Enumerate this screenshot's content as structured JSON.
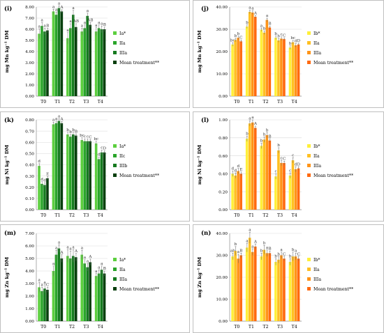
{
  "figure": {
    "panels": [
      {
        "tag": "(i)",
        "ylabel": "mg Mn kg⁻¹ DM",
        "legend": [
          "Ia*",
          "IIa",
          "IIIa",
          "Mean treatment**"
        ]
      },
      {
        "tag": "(j)",
        "ylabel": "mg Mn kg⁻¹ DM",
        "legend": [
          "Ib*",
          "IIa",
          "IIIa",
          "Mean treatment**"
        ]
      },
      {
        "tag": "(k)",
        "ylabel": "mg Ni kg⁻¹ DM",
        "legend": [
          "Ia*",
          "IIc",
          "IIIb",
          "Mean treatment**"
        ]
      },
      {
        "tag": "(l)",
        "ylabel": "mg Ni kg⁻¹ DM",
        "legend": [
          "Ib*",
          "IIa",
          "IIIa",
          "Mean treatment**"
        ]
      },
      {
        "tag": "(m)",
        "ylabel": "mg Zn kg⁻¹ DM",
        "legend": [
          "Ia*",
          "IIa",
          "IIIa",
          "Mean treatment**"
        ]
      },
      {
        "tag": "(n)",
        "ylabel": "mg Zn kg⁻¹ DM",
        "legend": [
          "Ib*",
          "IIa",
          "IIIa",
          "Mean treatment**"
        ]
      }
    ]
  },
  "chart_data": [
    {
      "type": "bar",
      "panel": "(i)",
      "palette": "green",
      "colors": [
        "#5ccf3e",
        "#2aa52a",
        "#157a1f",
        "#083f0e"
      ],
      "categories": [
        "T0",
        "T1",
        "T2",
        "T3",
        "T4"
      ],
      "ylabel": "mg Mn kg⁻¹ DM",
      "ylim": [
        0,
        8
      ],
      "yticks": [
        "0.00",
        "1.00",
        "2.00",
        "3.00",
        "4.00",
        "5.00",
        "6.00",
        "7.00",
        "8.00"
      ],
      "series": [
        {
          "name": "Ia*",
          "values": [
            5.6,
            7.6,
            5.2,
            5.8,
            5.8
          ],
          "errors": [
            0.45,
            0.2,
            0.5,
            0.3,
            0.35
          ],
          "labels": [
            "a",
            "a",
            "a",
            "a",
            "a"
          ]
        },
        {
          "name": "IIa",
          "values": [
            6.3,
            7.3,
            6.1,
            6.1,
            6.1
          ],
          "errors": [
            0.3,
            0.25,
            0.4,
            0.3,
            0.3
          ],
          "labels": [
            "a",
            "a",
            "a",
            "a",
            "a"
          ]
        },
        {
          "name": "IIIa",
          "values": [
            5.8,
            7.9,
            7.3,
            7.2,
            6.0
          ],
          "errors": [
            0.3,
            0.2,
            0.4,
            0.25,
            0.3
          ],
          "labels": [
            "a",
            "a",
            "a",
            "a",
            "a"
          ]
        },
        {
          "name": "Mean treatment**",
          "values": [
            5.9,
            7.6,
            6.2,
            6.4,
            6.0
          ],
          "errors": [
            0.2,
            0.15,
            0.3,
            0.2,
            0.2
          ],
          "labels": [
            "B",
            "A",
            "AB",
            "AB",
            "B"
          ]
        }
      ]
    },
    {
      "type": "bar",
      "panel": "(j)",
      "palette": "orange",
      "colors": [
        "#ffef3a",
        "#ffc022",
        "#ff9418",
        "#ff6a10"
      ],
      "categories": [
        "T0",
        "T1",
        "T2",
        "T3",
        "T4"
      ],
      "ylabel": "mg Mn kg⁻¹ DM",
      "ylim": [
        0,
        40
      ],
      "yticks": [
        "0.00",
        "10.00",
        "20.00",
        "30.00",
        "40.00"
      ],
      "series": [
        {
          "name": "Ib*",
          "values": [
            23.2,
            31.2,
            29.8,
            26.2,
            21.8
          ],
          "errors": [
            0.8,
            0.8,
            0.8,
            0.8,
            0.8
          ],
          "labels": [
            "bc",
            "b",
            "a",
            "b",
            "b"
          ]
        },
        {
          "name": "IIa",
          "values": [
            25.2,
            37.8,
            28.5,
            25.0,
            24.2
          ],
          "errors": [
            0.8,
            0.8,
            0.8,
            0.8,
            0.8
          ],
          "labels": [
            "b",
            "a",
            "b",
            "b",
            "bc"
          ]
        },
        {
          "name": "IIIa",
          "values": [
            26.2,
            37.5,
            34.2,
            25.8,
            22.8
          ],
          "errors": [
            0.8,
            0.8,
            0.8,
            0.8,
            0.8
          ],
          "labels": [
            "b",
            "a",
            "a",
            "c",
            "d"
          ]
        },
        {
          "name": "Mean treatment**",
          "values": [
            24.6,
            35.6,
            30.8,
            25.6,
            23.2
          ],
          "errors": [
            0.6,
            0.6,
            0.6,
            0.6,
            0.6
          ],
          "labels": [
            "C",
            "A",
            "B",
            "C",
            "D"
          ]
        }
      ]
    },
    {
      "type": "bar",
      "panel": "(k)",
      "palette": "green",
      "colors": [
        "#5ccf3e",
        "#2aa52a",
        "#157a1f",
        "#083f0e"
      ],
      "categories": [
        "T0",
        "T1",
        "T2",
        "T3",
        "T4"
      ],
      "ylabel": "mg Ni kg⁻¹ DM",
      "ylim": [
        0,
        0.8
      ],
      "yticks": [
        "0.00",
        "0.10",
        "0.20",
        "0.30",
        "0.40",
        "0.50",
        "0.60",
        "0.70",
        "0.80"
      ],
      "series": [
        {
          "name": "Ia*",
          "values": [
            0.39,
            0.76,
            0.67,
            0.62,
            0.59
          ],
          "errors": [
            0.02,
            0.02,
            0.02,
            0.02,
            0.02
          ],
          "labels": [
            "d",
            "a",
            "b",
            "bc",
            "bc"
          ]
        },
        {
          "name": "IIc",
          "values": [
            0.23,
            0.77,
            0.65,
            0.61,
            0.45
          ],
          "errors": [
            0.02,
            0.02,
            0.02,
            0.02,
            0.02
          ],
          "labels": [
            "d",
            "a",
            "b",
            "c",
            "d"
          ]
        },
        {
          "name": "IIIb",
          "values": [
            0.22,
            0.79,
            0.67,
            0.61,
            0.51
          ],
          "errors": [
            0.02,
            0.02,
            0.02,
            0.02,
            0.02
          ],
          "labels": [
            "d",
            "a",
            "b",
            "c",
            "c"
          ]
        },
        {
          "name": "Mean treatment**",
          "values": [
            0.28,
            0.77,
            0.66,
            0.61,
            0.51
          ],
          "errors": [
            0.015,
            0.015,
            0.015,
            0.015,
            0.015
          ],
          "labels": [
            "E",
            "A",
            "B",
            "C",
            "D"
          ]
        }
      ]
    },
    {
      "type": "bar",
      "panel": "(l)",
      "palette": "orange",
      "colors": [
        "#ffef3a",
        "#ffc022",
        "#ff9418",
        "#ff6a10"
      ],
      "categories": [
        "T0",
        "T1",
        "T2",
        "T3",
        "T4"
      ],
      "ylabel": "mg Ni kg⁻¹ DM",
      "ylim": [
        0,
        1
      ],
      "yticks": [
        "0.00",
        "0.20",
        "0.40",
        "0.60",
        "0.80",
        "1.00"
      ],
      "series": [
        {
          "name": "Ib*",
          "values": [
            0.4,
            0.79,
            0.71,
            0.37,
            0.38
          ],
          "errors": [
            0.03,
            0.03,
            0.03,
            0.03,
            0.03
          ],
          "labels": [
            "d",
            "b",
            "b",
            "c",
            "c"
          ]
        },
        {
          "name": "IIa",
          "values": [
            0.38,
            0.96,
            0.78,
            0.66,
            0.55
          ],
          "errors": [
            0.03,
            0.03,
            0.03,
            0.03,
            0.03
          ],
          "labels": [
            "d",
            "a",
            "b",
            "b",
            "c"
          ]
        },
        {
          "name": "IIIa",
          "values": [
            0.43,
            0.97,
            0.83,
            0.52,
            0.45
          ],
          "errors": [
            0.03,
            0.03,
            0.03,
            0.03,
            0.03
          ],
          "labels": [
            "d",
            "a",
            "b",
            "c",
            "d"
          ]
        },
        {
          "name": "Mean treatment**",
          "values": [
            0.4,
            0.91,
            0.77,
            0.52,
            0.46
          ],
          "errors": [
            0.02,
            0.02,
            0.02,
            0.02,
            0.02
          ],
          "labels": [
            "E",
            "A",
            "B",
            "C",
            "D"
          ]
        }
      ]
    },
    {
      "type": "bar",
      "panel": "(m)",
      "palette": "green",
      "colors": [
        "#5ccf3e",
        "#2aa52a",
        "#157a1f",
        "#083f0e"
      ],
      "categories": [
        "T0",
        "T1",
        "T2",
        "T3",
        "T4"
      ],
      "ylabel": "mg Zn kg⁻¹ DM",
      "ylim": [
        0,
        7
      ],
      "yticks": [
        "0.00",
        "1.00",
        "2.00",
        "3.00",
        "4.00",
        "5.00",
        "6.00",
        "7.00"
      ],
      "series": [
        {
          "name": "Ia*",
          "values": [
            2.7,
            4.0,
            5.2,
            5.3,
            3.6
          ],
          "errors": [
            0.4,
            0.4,
            0.5,
            0.35,
            0.2
          ],
          "labels": [
            "a",
            "a",
            "a",
            "a",
            "a"
          ]
        },
        {
          "name": "IIa",
          "values": [
            2.4,
            5.3,
            5.0,
            4.6,
            3.8
          ],
          "errors": [
            0.3,
            0.35,
            0.6,
            0.3,
            0.3
          ],
          "labels": [
            "a",
            "a",
            "a",
            "a",
            "a"
          ]
        },
        {
          "name": "IIIa",
          "values": [
            2.6,
            5.8,
            5.2,
            4.3,
            4.1
          ],
          "errors": [
            0.3,
            0.3,
            0.5,
            0.3,
            0.3
          ],
          "labels": [
            "a",
            "a",
            "a",
            "a",
            "a"
          ]
        },
        {
          "name": "Mean treatment**",
          "values": [
            2.5,
            5.0,
            5.1,
            4.7,
            3.8
          ],
          "errors": [
            0.2,
            0.3,
            0.3,
            0.25,
            0.2
          ],
          "labels": [
            "C",
            "A",
            "A",
            "A",
            "B"
          ]
        }
      ]
    },
    {
      "type": "bar",
      "panel": "(n)",
      "palette": "orange",
      "colors": [
        "#ffef3a",
        "#ffc022",
        "#ff9418",
        "#ff6a10"
      ],
      "categories": [
        "T0",
        "T1",
        "T2",
        "T3",
        "T4"
      ],
      "ylabel": "mg Zn kg⁻¹ DM",
      "ylim": [
        0,
        40
      ],
      "yticks": [
        "0.00",
        "10.00",
        "20.00",
        "30.00",
        "40.00"
      ],
      "series": [
        {
          "name": "Ib*",
          "values": [
            29.5,
            33.5,
            29.5,
            27.0,
            27.0
          ],
          "errors": [
            1.5,
            2.0,
            1.5,
            1.5,
            1.5
          ],
          "labels": [
            "ab",
            "a",
            "b",
            "b",
            "b"
          ]
        },
        {
          "name": "IIa",
          "values": [
            32.0,
            38.0,
            32.5,
            28.0,
            29.5
          ],
          "errors": [
            2.0,
            2.5,
            2.0,
            1.5,
            2.0
          ],
          "labels": [
            "b",
            "a",
            "b",
            "b",
            "b"
          ]
        },
        {
          "name": "IIIa",
          "values": [
            28.5,
            31.5,
            31.0,
            30.0,
            29.5
          ],
          "errors": [
            2.0,
            1.5,
            1.5,
            1.5,
            1.5
          ],
          "labels": [
            "a",
            "a",
            "a",
            "a",
            "a"
          ]
        },
        {
          "name": "Mean treatment**",
          "values": [
            30.0,
            34.0,
            31.0,
            28.5,
            28.5
          ],
          "errors": [
            1.0,
            1.2,
            1.0,
            1.0,
            1.0
          ],
          "labels": [
            "B",
            "A",
            "B",
            "C",
            "C"
          ]
        }
      ]
    }
  ]
}
